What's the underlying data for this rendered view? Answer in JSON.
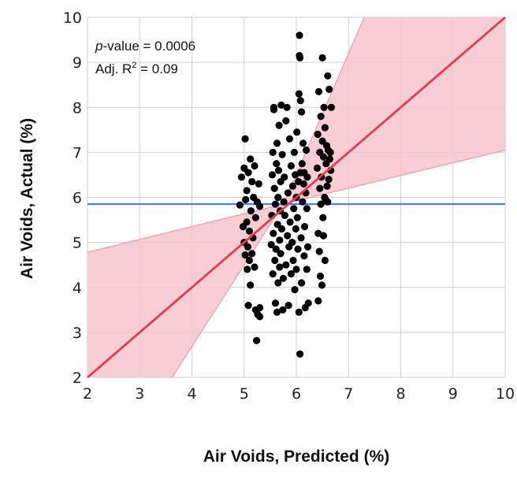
{
  "chart_data": {
    "type": "scatter",
    "xlabel": "Air Voids, Predicted (%)",
    "ylabel": "Air Voids, Actual (%)",
    "xlim": [
      2,
      10
    ],
    "ylim": [
      2,
      10
    ],
    "xticks": [
      "2",
      "3",
      "4",
      "5",
      "6",
      "7",
      "8",
      "9",
      "10"
    ],
    "yticks": [
      "2",
      "3",
      "4",
      "5",
      "6",
      "7",
      "8",
      "9",
      "10"
    ],
    "grid": true,
    "annotations": {
      "pvalue_italic": "p",
      "pvalue_rest": "-value = 0.0006",
      "r2_prefix": "Adj. R",
      "r2_sup": "2",
      "r2_rest": " = 0.09"
    },
    "mean_line": {
      "y": 5.85,
      "color": "#4a7fe6"
    },
    "fit_line": {
      "x": [
        2,
        10
      ],
      "y": [
        2,
        10
      ],
      "color": "#e8384f"
    },
    "confidence_band": {
      "color": "#f7c6cd",
      "upper": [
        [
          2,
          4.78
        ],
        [
          5.75,
          5.85
        ],
        [
          7.3,
          10
        ]
      ],
      "lower": [
        [
          3.62,
          2
        ],
        [
          5.75,
          5.85
        ],
        [
          10,
          7.05
        ]
      ]
    },
    "points": [
      [
        4.92,
        5.83
      ],
      [
        4.95,
        6.45
      ],
      [
        4.98,
        5.35
      ],
      [
        5.0,
        6.65
      ],
      [
        5.0,
        5.0
      ],
      [
        5.02,
        7.3
      ],
      [
        5.02,
        4.72
      ],
      [
        5.03,
        5.95
      ],
      [
        5.05,
        6.15
      ],
      [
        5.05,
        5.45
      ],
      [
        5.06,
        4.4
      ],
      [
        5.07,
        4.9
      ],
      [
        5.08,
        6.55
      ],
      [
        5.08,
        3.6
      ],
      [
        5.1,
        5.25
      ],
      [
        5.1,
        4.6
      ],
      [
        5.12,
        6.85
      ],
      [
        5.12,
        4.05
      ],
      [
        5.13,
        5.7
      ],
      [
        5.15,
        6.35
      ],
      [
        5.15,
        4.75
      ],
      [
        5.17,
        5.1
      ],
      [
        5.18,
        6.0
      ],
      [
        5.2,
        6.7
      ],
      [
        5.2,
        4.45
      ],
      [
        5.22,
        5.55
      ],
      [
        5.22,
        3.5
      ],
      [
        5.24,
        2.82
      ],
      [
        5.25,
        5.9
      ],
      [
        5.26,
        3.4
      ],
      [
        5.28,
        6.3
      ],
      [
        5.3,
        3.35
      ],
      [
        5.3,
        3.55
      ],
      [
        5.3,
        5.8
      ],
      [
        5.52,
        4.95
      ],
      [
        5.53,
        5.6
      ],
      [
        5.54,
        6.5
      ],
      [
        5.55,
        7.0
      ],
      [
        5.55,
        4.3
      ],
      [
        5.56,
        5.2
      ],
      [
        5.57,
        8.0
      ],
      [
        5.57,
        7.95
      ],
      [
        5.58,
        6.2
      ],
      [
        5.59,
        4.6
      ],
      [
        5.6,
        5.85
      ],
      [
        5.6,
        3.65
      ],
      [
        5.61,
        4.85
      ],
      [
        5.62,
        6.75
      ],
      [
        5.63,
        7.2
      ],
      [
        5.63,
        3.45
      ],
      [
        5.64,
        5.4
      ],
      [
        5.65,
        4.1
      ],
      [
        5.65,
        6.0
      ],
      [
        5.66,
        6.6
      ],
      [
        5.67,
        7.6
      ],
      [
        5.68,
        4.45
      ],
      [
        5.68,
        5.05
      ],
      [
        5.69,
        5.7
      ],
      [
        5.7,
        6.35
      ],
      [
        5.7,
        4.75
      ],
      [
        5.71,
        8.05
      ],
      [
        5.72,
        5.3
      ],
      [
        5.73,
        6.95
      ],
      [
        5.74,
        3.5
      ],
      [
        5.75,
        4.2
      ],
      [
        5.76,
        5.9
      ],
      [
        5.77,
        6.45
      ],
      [
        5.78,
        5.6
      ],
      [
        5.8,
        7.7
      ],
      [
        5.8,
        4.5
      ],
      [
        5.82,
        8.0
      ],
      [
        5.83,
        5.15
      ],
      [
        5.84,
        6.1
      ],
      [
        5.85,
        3.6
      ],
      [
        5.86,
        4.9
      ],
      [
        5.87,
        7.3
      ],
      [
        5.88,
        5.45
      ],
      [
        5.9,
        6.7
      ],
      [
        5.9,
        4.3
      ],
      [
        5.92,
        5.0
      ],
      [
        5.93,
        6.25
      ],
      [
        5.94,
        4.6
      ],
      [
        5.95,
        5.75
      ],
      [
        5.96,
        7.0
      ],
      [
        5.97,
        3.95
      ],
      [
        5.98,
        6.5
      ],
      [
        5.99,
        5.3
      ],
      [
        6.0,
        4.4
      ],
      [
        6.0,
        6.0
      ],
      [
        6.01,
        7.45
      ],
      [
        6.02,
        5.55
      ],
      [
        6.03,
        4.85
      ],
      [
        6.04,
        6.35
      ],
      [
        6.05,
        8.3
      ],
      [
        6.05,
        3.45
      ],
      [
        6.06,
        9.6
      ],
      [
        6.06,
        9.15
      ],
      [
        6.07,
        9.1
      ],
      [
        6.07,
        2.52
      ],
      [
        6.08,
        6.55
      ],
      [
        6.08,
        8.15
      ],
      [
        6.09,
        5.1
      ],
      [
        6.1,
        7.9
      ],
      [
        6.1,
        4.1
      ],
      [
        6.11,
        6.75
      ],
      [
        6.12,
        5.9
      ],
      [
        6.13,
        7.2
      ],
      [
        6.14,
        6.3
      ],
      [
        6.15,
        4.7
      ],
      [
        6.15,
        6.55
      ],
      [
        6.16,
        5.35
      ],
      [
        6.17,
        3.55
      ],
      [
        6.18,
        6.1
      ],
      [
        6.19,
        7.05
      ],
      [
        6.2,
        4.4
      ],
      [
        6.2,
        5.75
      ],
      [
        6.21,
        6.45
      ],
      [
        6.22,
        4.9
      ],
      [
        6.23,
        3.65
      ],
      [
        6.4,
        6.65
      ],
      [
        6.41,
        7.4
      ],
      [
        6.42,
        5.2
      ],
      [
        6.42,
        3.7
      ],
      [
        6.43,
        8.35
      ],
      [
        6.44,
        4.8
      ],
      [
        6.45,
        6.2
      ],
      [
        6.45,
        7.0
      ],
      [
        6.46,
        4.25
      ],
      [
        6.47,
        5.85
      ],
      [
        6.47,
        7.8
      ],
      [
        6.48,
        6.45
      ],
      [
        6.49,
        4.05
      ],
      [
        6.5,
        9.1
      ],
      [
        6.5,
        7.25
      ],
      [
        6.51,
        5.55
      ],
      [
        6.52,
        6.9
      ],
      [
        6.52,
        5.15
      ],
      [
        6.53,
        8.0
      ],
      [
        6.54,
        6.0
      ],
      [
        6.55,
        7.55
      ],
      [
        6.55,
        4.6
      ],
      [
        6.56,
        5.95
      ],
      [
        6.57,
        6.75
      ],
      [
        6.58,
        7.15
      ],
      [
        6.59,
        6.25
      ],
      [
        6.6,
        8.7
      ],
      [
        6.6,
        5.9
      ],
      [
        6.61,
        7.05
      ],
      [
        6.62,
        6.4
      ],
      [
        6.63,
        8.4
      ],
      [
        6.64,
        6.85
      ],
      [
        6.65,
        7.0
      ],
      [
        6.66,
        6.6
      ],
      [
        6.67,
        8.0
      ]
    ]
  }
}
